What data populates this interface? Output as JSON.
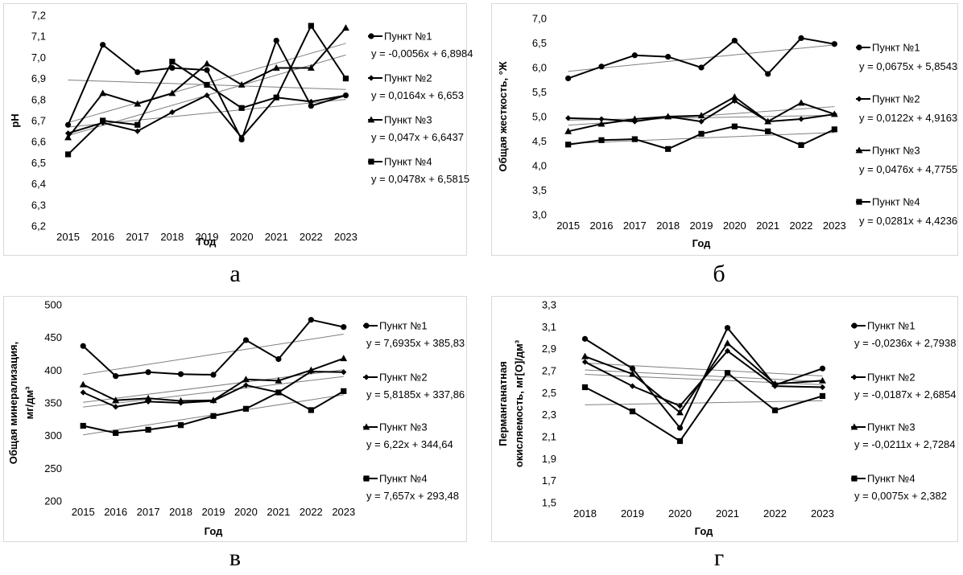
{
  "chart_data": [
    {
      "type": "line",
      "panel": "a",
      "ylabel": "pH",
      "xlabel": "Год",
      "ylim": [
        6.2,
        7.2
      ],
      "ytick_step": 0.1,
      "ytick_decimals": 1,
      "categories": [
        "2015",
        "2016",
        "2017",
        "2018",
        "2019",
        "2020",
        "2021",
        "2022",
        "2023"
      ],
      "series": [
        {
          "name": "Пункт №1",
          "marker": "circle",
          "values": [
            6.68,
            7.06,
            6.93,
            6.95,
            6.94,
            6.61,
            7.08,
            6.77,
            6.82
          ],
          "trend": "y = -0,0056x + 6,8984"
        },
        {
          "name": "Пункт №2",
          "marker": "diamond",
          "values": [
            6.64,
            6.69,
            6.65,
            6.74,
            6.82,
            6.62,
            6.81,
            6.79,
            6.82
          ],
          "trend": "y = 0,0164x + 6,653"
        },
        {
          "name": "Пункт №3",
          "marker": "triangle",
          "values": [
            6.62,
            6.83,
            6.78,
            6.83,
            6.97,
            6.87,
            6.95,
            6.95,
            7.14
          ],
          "trend": "y = 0,047x + 6,6437"
        },
        {
          "name": "Пункт №4",
          "marker": "square",
          "values": [
            6.54,
            6.7,
            6.68,
            6.98,
            6.87,
            6.76,
            6.81,
            7.15,
            6.9
          ],
          "trend": "y = 0,0478x + 6,5815"
        }
      ],
      "trend_coef": [
        [
          -0.0056,
          6.8984
        ],
        [
          0.0164,
          6.653
        ],
        [
          0.047,
          6.6437
        ],
        [
          0.0478,
          6.5815
        ]
      ],
      "caption": "а"
    },
    {
      "type": "line",
      "panel": "b",
      "ylabel": "Общая жесткость, °Ж",
      "xlabel": "Год",
      "ylim": [
        3.0,
        7.0
      ],
      "ytick_step": 0.5,
      "ytick_decimals": 1,
      "categories": [
        "2015",
        "2016",
        "2017",
        "2018",
        "2019",
        "2020",
        "2021",
        "2022",
        "2023"
      ],
      "series": [
        {
          "name": "Пункт №1",
          "marker": "circle",
          "values": [
            5.78,
            6.02,
            6.25,
            6.22,
            6.0,
            6.55,
            5.87,
            6.6,
            6.48
          ],
          "trend": "y = 0,0675x + 5,8543"
        },
        {
          "name": "Пункт №2",
          "marker": "diamond",
          "values": [
            4.97,
            4.95,
            4.9,
            5.0,
            4.9,
            5.32,
            4.9,
            4.95,
            5.05
          ],
          "trend": "y = 0,0122x + 4,9163"
        },
        {
          "name": "Пункт №3",
          "marker": "triangle",
          "values": [
            4.7,
            4.85,
            4.95,
            5.0,
            5.02,
            5.4,
            4.9,
            5.28,
            5.05
          ],
          "trend": "y = 0,0476x + 4,7755"
        },
        {
          "name": "Пункт №4",
          "marker": "square",
          "values": [
            4.43,
            4.52,
            4.54,
            4.34,
            4.65,
            4.8,
            4.7,
            4.42,
            4.74
          ],
          "trend": "y = 0,0281x + 4,4236"
        }
      ],
      "trend_coef": [
        [
          0.0675,
          5.8543
        ],
        [
          0.0122,
          4.9163
        ],
        [
          0.0476,
          4.7755
        ],
        [
          0.0281,
          4.4236
        ]
      ],
      "caption": "б"
    },
    {
      "type": "line",
      "panel": "c",
      "ylabel": "Общая минерализация, мг/дм³",
      "xlabel": "Год",
      "ylim": [
        200,
        500
      ],
      "ytick_step": 50,
      "ytick_decimals": 0,
      "categories": [
        "2015",
        "2016",
        "2017",
        "2018",
        "2019",
        "2020",
        "2021",
        "2022",
        "2023"
      ],
      "series": [
        {
          "name": "Пункт №1",
          "marker": "circle",
          "values": [
            437,
            391,
            397,
            394,
            393,
            446,
            417,
            477,
            466
          ],
          "trend": "y = 7,6935x + 385,83"
        },
        {
          "name": "Пункт №2",
          "marker": "diamond",
          "values": [
            366,
            344,
            352,
            350,
            353,
            377,
            366,
            398,
            397
          ],
          "trend": "y = 5,8185x + 337,86"
        },
        {
          "name": "Пункт №3",
          "marker": "triangle",
          "values": [
            378,
            354,
            357,
            353,
            354,
            386,
            384,
            400,
            418
          ],
          "trend": "y = 6,22x + 344,64"
        },
        {
          "name": "Пункт №4",
          "marker": "square",
          "values": [
            315,
            304,
            309,
            316,
            330,
            341,
            366,
            339,
            368
          ],
          "trend": "y = 7,657x + 293,48"
        }
      ],
      "trend_coef": [
        [
          7.6935,
          385.83
        ],
        [
          5.8185,
          337.86
        ],
        [
          6.22,
          344.64
        ],
        [
          7.657,
          293.48
        ]
      ],
      "caption": "в"
    },
    {
      "type": "line",
      "panel": "d",
      "ylabel": "Перманганатная окисляемость, мг[О]/дм³",
      "xlabel": "Год",
      "ylim": [
        1.5,
        3.3
      ],
      "ytick_step": 0.2,
      "ytick_decimals": 1,
      "categories": [
        "2018",
        "2019",
        "2020",
        "2021",
        "2022",
        "2023"
      ],
      "series": [
        {
          "name": "Пункт №1",
          "marker": "circle",
          "values": [
            2.99,
            2.72,
            2.18,
            3.09,
            2.57,
            2.72
          ],
          "trend": "y = -0,0236x + 2,7938"
        },
        {
          "name": "Пункт №2",
          "marker": "diamond",
          "values": [
            2.78,
            2.56,
            2.38,
            2.88,
            2.56,
            2.55
          ],
          "trend": "y = -0,0187x + 2,6854"
        },
        {
          "name": "Пункт №3",
          "marker": "triangle",
          "values": [
            2.83,
            2.67,
            2.32,
            2.95,
            2.58,
            2.61
          ],
          "trend": "y = -0,0211x + 2,7284"
        },
        {
          "name": "Пункт №4",
          "marker": "square",
          "values": [
            2.55,
            2.33,
            2.06,
            2.68,
            2.34,
            2.47
          ],
          "trend": "y = 0,0075x + 2,382"
        }
      ],
      "trend_coef": [
        [
          -0.0236,
          2.7938
        ],
        [
          -0.0187,
          2.6854
        ],
        [
          -0.0211,
          2.7284
        ],
        [
          0.0075,
          2.382
        ]
      ],
      "caption": "г"
    }
  ]
}
